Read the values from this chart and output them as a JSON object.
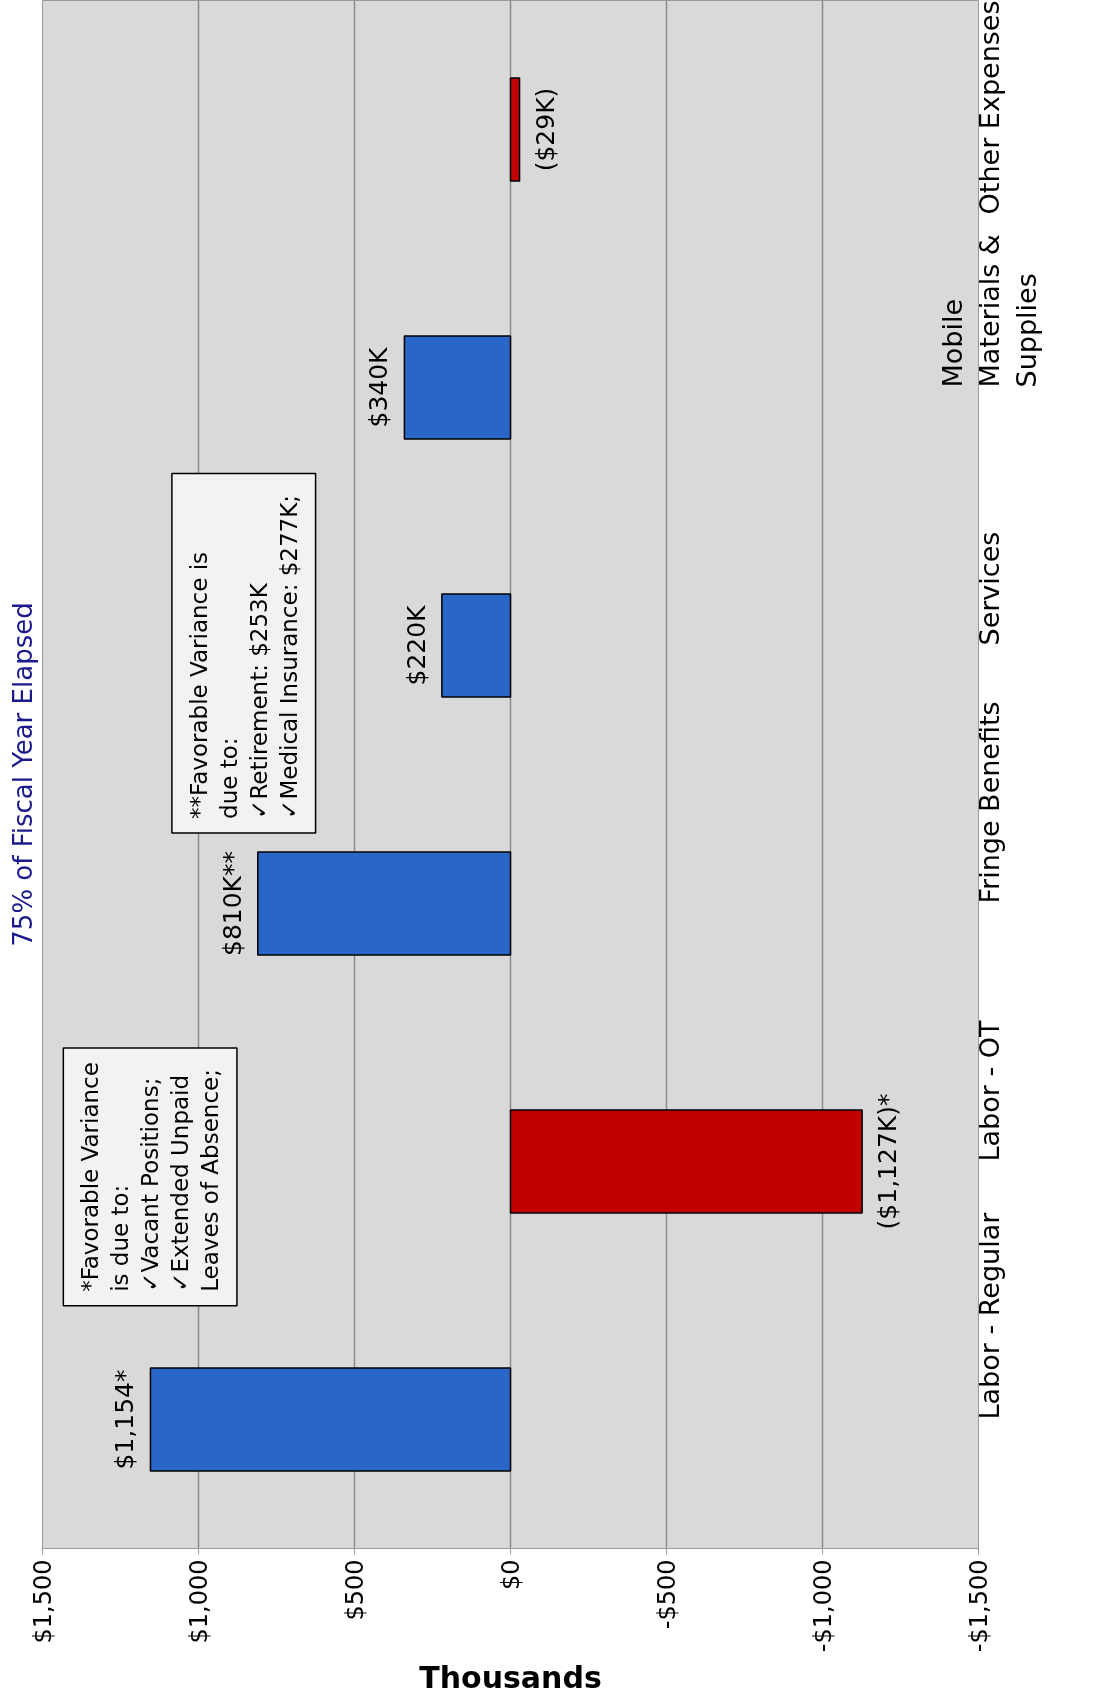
{
  "chart_data": {
    "type": "bar",
    "orientation": "horizontal",
    "title": "75% of Fiscal Year Elapsed",
    "xlabel": "Thousands",
    "categories": [
      "Other Expenses",
      "Mobile\nMaterials &\nSupplies",
      "Services",
      "Fringe Benefits",
      "Labor - OT",
      "Labor - Regular"
    ],
    "values": [
      -29,
      340,
      220,
      810,
      -1127,
      1154
    ],
    "colors": [
      "#c00000",
      "#2966c8",
      "#2966c8",
      "#2966c8",
      "#c00000",
      "#2966c8"
    ],
    "value_labels": [
      "($29K)",
      "$340K",
      "$220K",
      "$810K**",
      "($1,127K)*",
      "$1,154*"
    ],
    "xlim": [
      1500,
      -1500
    ],
    "xticks": [
      {
        "value": 1500,
        "label": "$1,500"
      },
      {
        "value": 1000,
        "label": "$1,000"
      },
      {
        "value": 500,
        "label": "$500"
      },
      {
        "value": 0,
        "label": "$0"
      },
      {
        "value": -500,
        "label": "-$500"
      },
      {
        "value": -1000,
        "label": "-$1,000"
      },
      {
        "value": -1500,
        "label": "-$1,500"
      }
    ],
    "grid": "x",
    "annotations": [
      "*Favorable Variance\nis due to:\n✓Vacant Positions;\n✓Extended Unpaid\nLeaves of Absence;",
      "**Favorable Variance is\ndue to:\n✓Retirement:  $253K\n✓Medical Insurance:  $277K;"
    ]
  }
}
